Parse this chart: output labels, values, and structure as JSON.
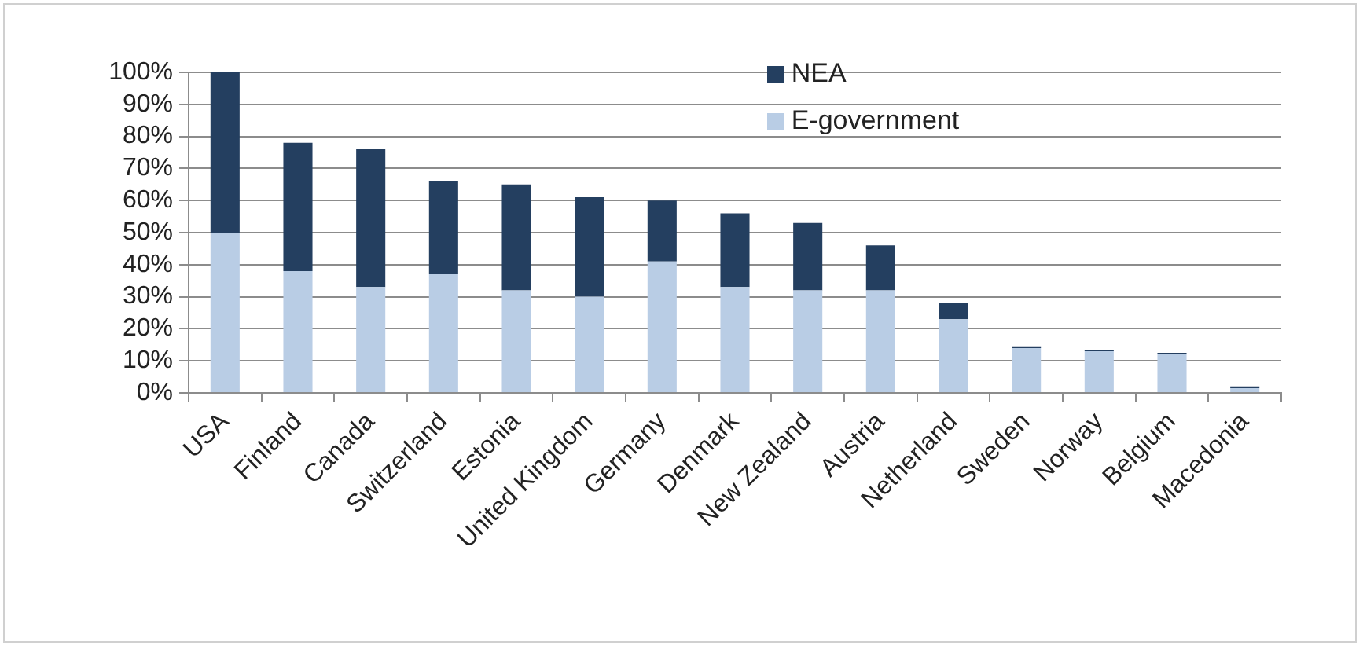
{
  "chart_data": {
    "type": "bar",
    "stacked": true,
    "categories": [
      "USA",
      "Finland",
      "Canada",
      "Switzerland",
      "Estonia",
      "United Kingdom",
      "Germany",
      "Denmark",
      "New Zealand",
      "Austria",
      "Netherland",
      "Sweden",
      "Norway",
      "Belgium",
      "Macedonia"
    ],
    "series": [
      {
        "name": "E-government",
        "color": "#b9cde5",
        "values": [
          50,
          38,
          33,
          37,
          32,
          30,
          41,
          33,
          32,
          32,
          23,
          14,
          13,
          12,
          1.5
        ]
      },
      {
        "name": "NEA",
        "color": "#243f60",
        "values": [
          50,
          40,
          43,
          29,
          33,
          31,
          19,
          23,
          21,
          14,
          5,
          0.5,
          0.5,
          0.5,
          0.5
        ]
      }
    ],
    "ylim": [
      0,
      100
    ],
    "yticks": [
      {
        "value": 0,
        "label": "0%"
      },
      {
        "value": 10,
        "label": "10%"
      },
      {
        "value": 20,
        "label": "20%"
      },
      {
        "value": 30,
        "label": "30%"
      },
      {
        "value": 40,
        "label": "40%"
      },
      {
        "value": 50,
        "label": "50%"
      },
      {
        "value": 60,
        "label": "60%"
      },
      {
        "value": 70,
        "label": "70%"
      },
      {
        "value": 80,
        "label": "80%"
      },
      {
        "value": 90,
        "label": "90%"
      },
      {
        "value": 100,
        "label": "100%"
      }
    ],
    "grid": "y",
    "legend": "top"
  }
}
